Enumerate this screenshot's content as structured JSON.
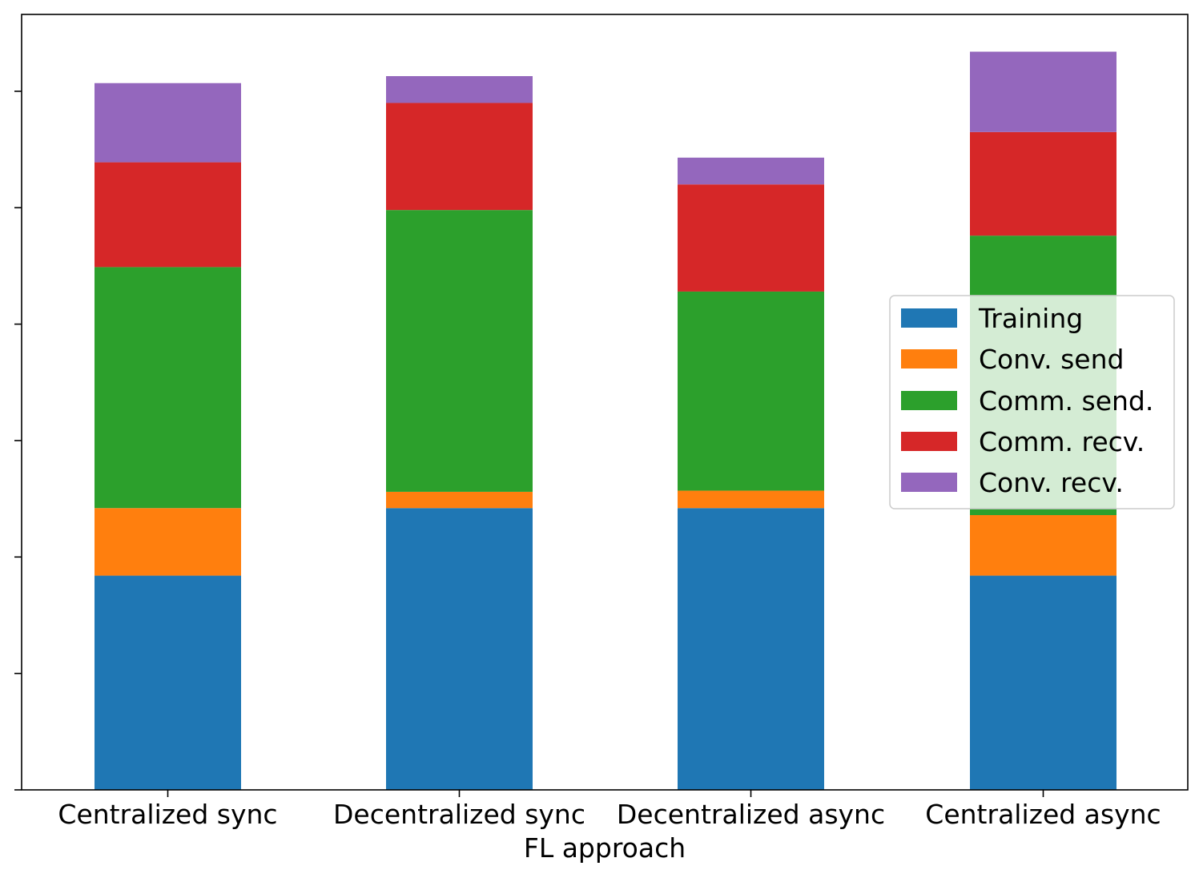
{
  "chart_data": {
    "type": "bar",
    "stacked": true,
    "title": "",
    "xlabel": "FL approach",
    "ylabel": "",
    "y_tick_labels_shown": false,
    "y_tick_count": 7,
    "categories": [
      "Centralized sync",
      "Decentralized sync",
      "Decentralized async",
      "Centralized async"
    ],
    "series": [
      {
        "name": "Training",
        "color": "#1f77b4",
        "values": [
          9.2,
          12.1,
          12.1,
          9.2
        ]
      },
      {
        "name": "Conv. send",
        "color": "#ff7f0e",
        "values": [
          2.9,
          0.7,
          0.75,
          2.6
        ]
      },
      {
        "name": "Comm. send.",
        "color": "#2ca02c",
        "values": [
          10.35,
          12.1,
          8.55,
          12.0
        ]
      },
      {
        "name": "Comm. recv.",
        "color": "#d62728",
        "values": [
          4.5,
          4.6,
          4.6,
          4.45
        ]
      },
      {
        "name": "Conv. recv.",
        "color": "#9467bd",
        "values": [
          3.4,
          1.15,
          1.15,
          3.45
        ]
      }
    ],
    "ylim": [
      0,
      33.3
    ],
    "grid": false,
    "legend_position": "center-right"
  }
}
